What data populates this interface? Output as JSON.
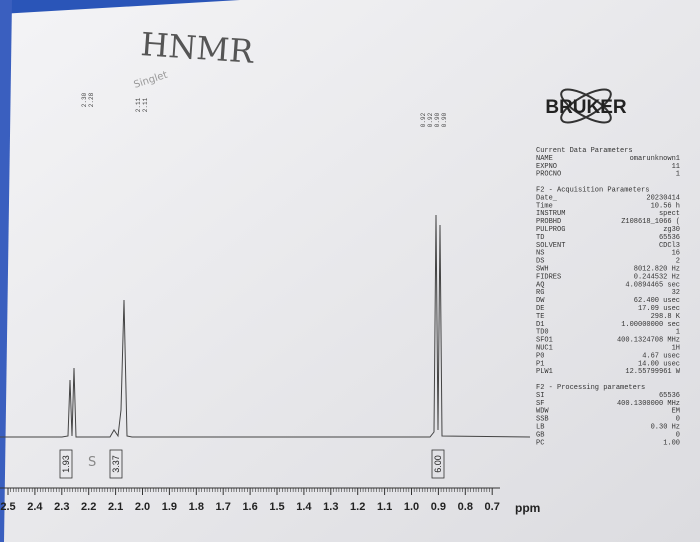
{
  "handwritten": {
    "title": "HNMR",
    "note": "Singlet",
    "mark": "S"
  },
  "peak_labels": [
    [
      "2.30",
      "2.28"
    ],
    [
      "2.11",
      "2.11"
    ],
    [
      "0.92",
      "0.92",
      "0.90",
      "0.90"
    ]
  ],
  "integrals": [
    "1.93",
    "3.37",
    "6.00"
  ],
  "axis": {
    "ticks": [
      "2.5",
      "2.4",
      "2.3",
      "2.2",
      "2.1",
      "2.0",
      "1.9",
      "1.8",
      "1.7",
      "1.6",
      "1.5",
      "1.4",
      "1.3",
      "1.2",
      "1.1",
      "1.0",
      "0.9",
      "0.8",
      "0.7"
    ],
    "unit": "ppm"
  },
  "logo": "BRUKER",
  "parameters": [
    {
      "title": "Current Data Parameters",
      "rows": [
        {
          "name": "NAME",
          "value": "omarunknown1"
        },
        {
          "name": "EXPNO",
          "value": "11"
        },
        {
          "name": "PROCNO",
          "value": "1"
        }
      ]
    },
    {
      "title": "F2 - Acquisition Parameters",
      "rows": [
        {
          "name": "Date_",
          "value": "20230414"
        },
        {
          "name": "Time",
          "value": "10.56 h"
        },
        {
          "name": "INSTRUM",
          "value": "spect"
        },
        {
          "name": "PROBHD",
          "value": "Z108618_1066 ("
        },
        {
          "name": "PULPROG",
          "value": "zg30"
        },
        {
          "name": "TD",
          "value": "65536"
        },
        {
          "name": "SOLVENT",
          "value": "CDCl3"
        },
        {
          "name": "NS",
          "value": "16"
        },
        {
          "name": "DS",
          "value": "2"
        },
        {
          "name": "SWH",
          "value": "8012.820 Hz"
        },
        {
          "name": "FIDRES",
          "value": "0.244532 Hz"
        },
        {
          "name": "AQ",
          "value": "4.0894465 sec"
        },
        {
          "name": "RG",
          "value": "32"
        },
        {
          "name": "DW",
          "value": "62.400 usec"
        },
        {
          "name": "DE",
          "value": "17.09 usec"
        },
        {
          "name": "TE",
          "value": "298.8 K"
        },
        {
          "name": "D1",
          "value": "1.00000000 sec"
        },
        {
          "name": "TD0",
          "value": "1"
        },
        {
          "name": "SFO1",
          "value": "400.1324708 MHz"
        },
        {
          "name": "NUC1",
          "value": "1H"
        },
        {
          "name": "P0",
          "value": "4.67 usec"
        },
        {
          "name": "P1",
          "value": "14.00 usec"
        },
        {
          "name": "PLW1",
          "value": "12.55799961 W"
        }
      ]
    },
    {
      "title": "F2 - Processing parameters",
      "rows": [
        {
          "name": "SI",
          "value": "65536"
        },
        {
          "name": "SF",
          "value": "400.1300000 MHz"
        },
        {
          "name": "WDW",
          "value": "EM"
        },
        {
          "name": "SSB",
          "value": "0"
        },
        {
          "name": "LB",
          "value": "0.30 Hz"
        },
        {
          "name": "GB",
          "value": "0"
        },
        {
          "name": "PC",
          "value": "1.00"
        }
      ]
    }
  ]
}
